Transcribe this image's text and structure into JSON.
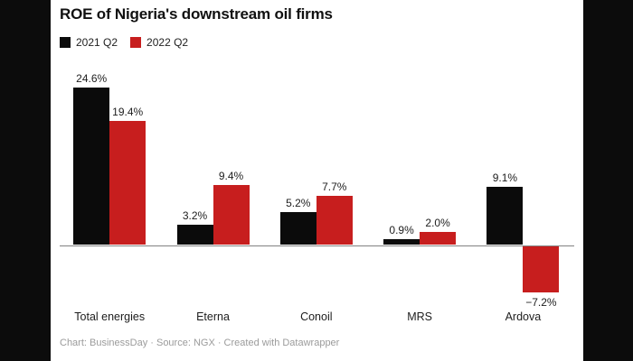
{
  "chart_data": {
    "type": "bar",
    "title": "ROE of Nigeria's downstream oil firms",
    "categories": [
      "Total energies",
      "Eterna",
      "Conoil",
      "MRS",
      "Ardova"
    ],
    "series": [
      {
        "name": "2021 Q2",
        "color": "#0b0b0b",
        "values": [
          24.6,
          3.2,
          5.2,
          0.9,
          9.1
        ],
        "labels": [
          "24.6%",
          "3.2%",
          "5.2%",
          "0.9%",
          "9.1%"
        ]
      },
      {
        "name": "2022 Q2",
        "color": "#c71e1e",
        "values": [
          19.4,
          9.4,
          7.7,
          2.0,
          -7.2
        ],
        "labels": [
          "19.4%",
          "9.4%",
          "7.7%",
          "2.0%",
          "−7.2%"
        ]
      }
    ],
    "xlabel": "",
    "ylabel": "",
    "ylim": [
      -10,
      26
    ],
    "grid": false,
    "legend_position": "top-left",
    "baseline_value": 0,
    "value_label_format": "percent"
  },
  "footer": {
    "text": "Chart: BusinessDay · Source: NGX · Created with Datawrapper"
  },
  "colors": {
    "page_bg": "#0c0c0c",
    "panel_bg": "#ffffff",
    "series_2021_q2": "#0b0b0b",
    "series_2022_q2": "#c71e1e",
    "axis_line": "#828282",
    "value_label": "#1d1d1d",
    "category_label": "#1d1d1d",
    "footer_text": "#9b9b9b",
    "title_text": "#111111"
  }
}
